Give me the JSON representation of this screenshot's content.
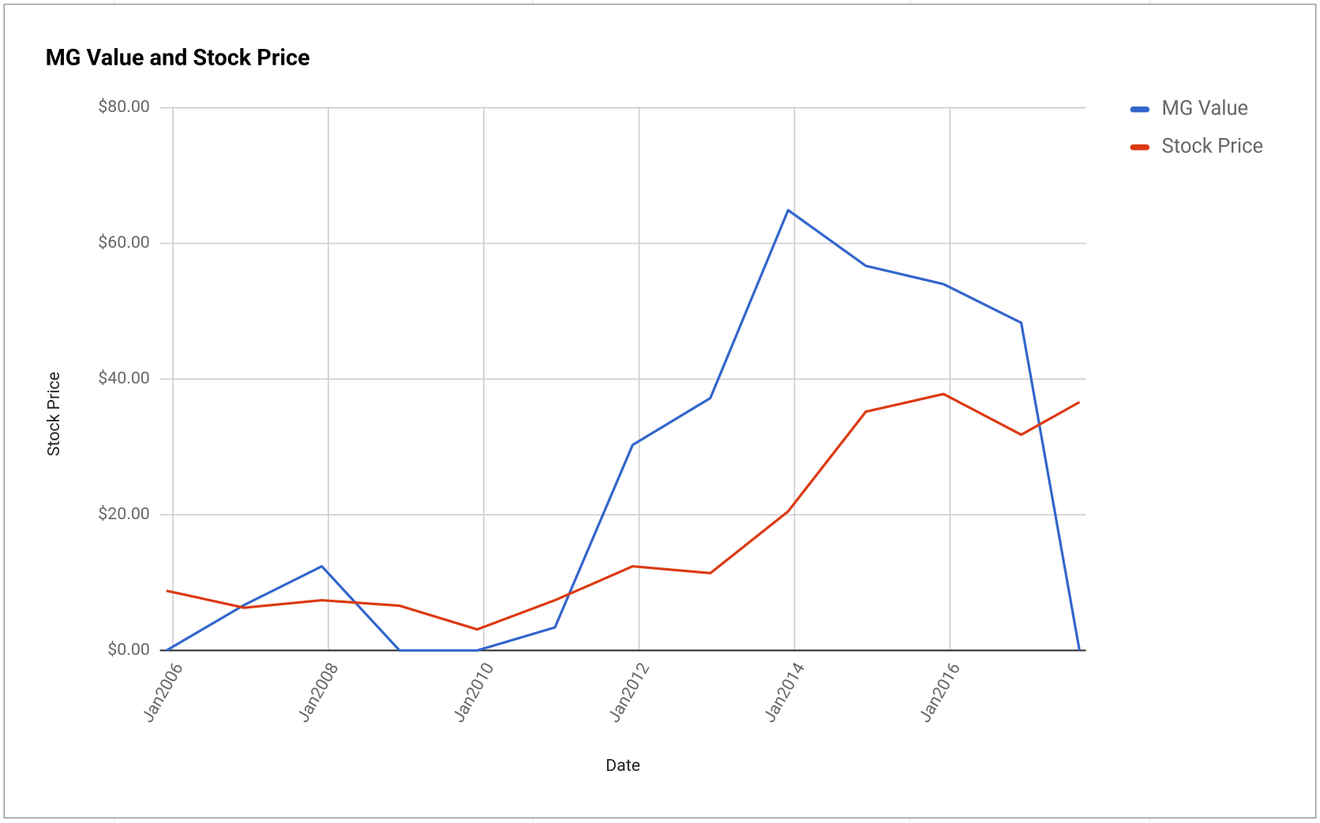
{
  "chart_data": {
    "type": "line",
    "title": "MG Value and Stock Price",
    "x_label": "Date",
    "y_label": "Stock Price",
    "x": [
      "2005-12",
      "2006-12",
      "2007-12",
      "2008-12",
      "2009-12",
      "2010-12",
      "2011-12",
      "2012-12",
      "2013-12",
      "2014-12",
      "2015-12",
      "2016-12",
      "2017-09"
    ],
    "series": [
      {
        "name": "MG Value",
        "color": "#3366cc",
        "values": [
          0,
          6.7,
          12.4,
          0,
          0,
          3.4,
          30.3,
          37.2,
          64.9,
          56.7,
          54.0,
          48.3,
          0
        ]
      },
      {
        "name": "Stock Price",
        "color": "#dc3912",
        "values": [
          8.8,
          6.3,
          7.4,
          6.6,
          3.1,
          7.4,
          12.4,
          11.4,
          20.5,
          35.2,
          37.8,
          31.8,
          36.6
        ]
      }
    ],
    "xlim": [
      "2005-11",
      "2017-10"
    ],
    "xticks": [
      {
        "value": "2006-01",
        "label": "Jan2006"
      },
      {
        "value": "2008-01",
        "label": "Jan2008"
      },
      {
        "value": "2010-01",
        "label": "Jan2010"
      },
      {
        "value": "2012-01",
        "label": "Jan2012"
      },
      {
        "value": "2014-01",
        "label": "Jan2014"
      },
      {
        "value": "2016-01",
        "label": "Jan2016"
      }
    ],
    "ylim": [
      0,
      80
    ],
    "yticks": [
      {
        "value": 0,
        "label": "$0.00"
      },
      {
        "value": 20,
        "label": "$20.00"
      },
      {
        "value": 40,
        "label": "$40.00"
      },
      {
        "value": 60,
        "label": "$60.00"
      },
      {
        "value": 80,
        "label": "$80.00"
      }
    ],
    "grid": true,
    "legend": "right"
  }
}
